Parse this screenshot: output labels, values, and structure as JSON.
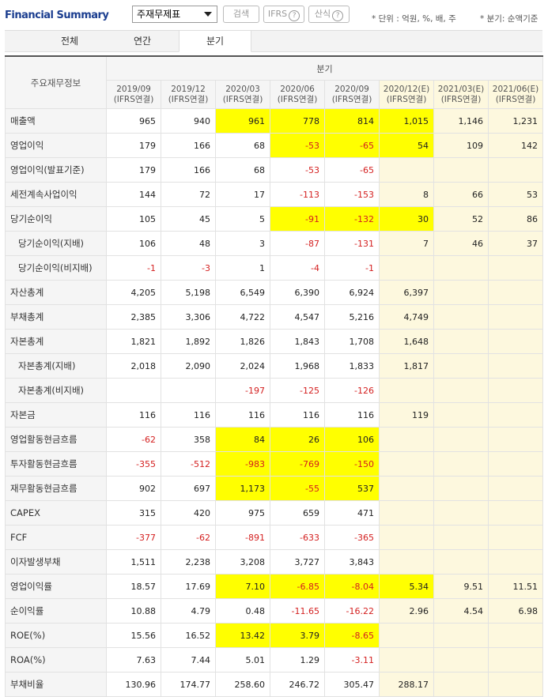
{
  "header": {
    "title": "Financial Summary",
    "select": "주재무제표",
    "buttons": [
      "검색",
      "IFRS",
      "산식"
    ],
    "notes": [
      "* 단위 : 억원, %, 배, 주",
      "* 분기: 순액기준"
    ]
  },
  "tabs": {
    "items": [
      "전체",
      "연간",
      "분기"
    ],
    "active": 2
  },
  "table": {
    "corner": "주요재무정보",
    "group": "분기",
    "highlight_color": "#ffff00",
    "estimate_color": "#fdf8de",
    "columns": [
      {
        "period": "2019/09",
        "basis": "(IFRS연결)",
        "estimated": false
      },
      {
        "period": "2019/12",
        "basis": "(IFRS연결)",
        "estimated": false
      },
      {
        "period": "2020/03",
        "basis": "(IFRS연결)",
        "estimated": false
      },
      {
        "period": "2020/06",
        "basis": "(IFRS연결)",
        "estimated": false
      },
      {
        "period": "2020/09",
        "basis": "(IFRS연결)",
        "estimated": false
      },
      {
        "period": "2020/12(E)",
        "basis": "(IFRS연결)",
        "estimated": true
      },
      {
        "period": "2021/03(E)",
        "basis": "(IFRS연결)",
        "estimated": true
      },
      {
        "period": "2021/06(E)",
        "basis": "(IFRS연결)",
        "estimated": true
      }
    ],
    "rows": [
      {
        "label": "매출액",
        "indent": false,
        "highlighted": [
          2,
          3,
          4,
          5
        ],
        "values": [
          "965",
          "940",
          "961",
          "778",
          "814",
          "1,015",
          "1,146",
          "1,231"
        ]
      },
      {
        "label": "영업이익",
        "indent": false,
        "highlighted": [
          3,
          4,
          5
        ],
        "values": [
          "179",
          "166",
          "68",
          "-53",
          "-65",
          "54",
          "109",
          "142"
        ]
      },
      {
        "label": "영업이익(발표기준)",
        "indent": false,
        "highlighted": [],
        "values": [
          "179",
          "166",
          "68",
          "-53",
          "-65",
          null,
          null,
          null
        ]
      },
      {
        "label": "세전계속사업이익",
        "indent": false,
        "highlighted": [],
        "values": [
          "144",
          "72",
          "17",
          "-113",
          "-153",
          "8",
          "66",
          "53"
        ]
      },
      {
        "label": "당기순이익",
        "indent": false,
        "highlighted": [
          3,
          4,
          5
        ],
        "values": [
          "105",
          "45",
          "5",
          "-91",
          "-132",
          "30",
          "52",
          "86"
        ]
      },
      {
        "label": "당기순이익(지배)",
        "indent": true,
        "highlighted": [],
        "values": [
          "106",
          "48",
          "3",
          "-87",
          "-131",
          "7",
          "46",
          "37"
        ]
      },
      {
        "label": "당기순이익(비지배)",
        "indent": true,
        "highlighted": [],
        "values": [
          "-1",
          "-3",
          "1",
          "-4",
          "-1",
          null,
          null,
          null
        ]
      },
      {
        "label": "자산총계",
        "indent": false,
        "highlighted": [],
        "values": [
          "4,205",
          "5,198",
          "6,549",
          "6,390",
          "6,924",
          "6,397",
          null,
          null
        ]
      },
      {
        "label": "부채총계",
        "indent": false,
        "highlighted": [],
        "values": [
          "2,385",
          "3,306",
          "4,722",
          "4,547",
          "5,216",
          "4,749",
          null,
          null
        ]
      },
      {
        "label": "자본총계",
        "indent": false,
        "highlighted": [],
        "values": [
          "1,821",
          "1,892",
          "1,826",
          "1,843",
          "1,708",
          "1,648",
          null,
          null
        ]
      },
      {
        "label": "자본총계(지배)",
        "indent": true,
        "highlighted": [],
        "values": [
          "2,018",
          "2,090",
          "2,024",
          "1,968",
          "1,833",
          "1,817",
          null,
          null
        ]
      },
      {
        "label": "자본총계(비지배)",
        "indent": true,
        "highlighted": [],
        "values": [
          null,
          null,
          "-197",
          "-125",
          "-126",
          null,
          null,
          null
        ]
      },
      {
        "label": "자본금",
        "indent": false,
        "highlighted": [],
        "values": [
          "116",
          "116",
          "116",
          "116",
          "116",
          "119",
          null,
          null
        ]
      },
      {
        "label": "영업활동현금흐름",
        "indent": false,
        "highlighted": [
          2,
          3,
          4
        ],
        "values": [
          "-62",
          "358",
          "84",
          "26",
          "106",
          null,
          null,
          null
        ]
      },
      {
        "label": "투자활동현금흐름",
        "indent": false,
        "highlighted": [
          2,
          3,
          4
        ],
        "values": [
          "-355",
          "-512",
          "-983",
          "-769",
          "-150",
          null,
          null,
          null
        ]
      },
      {
        "label": "재무활동현금흐름",
        "indent": false,
        "highlighted": [
          2,
          3,
          4
        ],
        "values": [
          "902",
          "697",
          "1,173",
          "-55",
          "537",
          null,
          null,
          null
        ]
      },
      {
        "label": "CAPEX",
        "indent": false,
        "highlighted": [],
        "values": [
          "315",
          "420",
          "975",
          "659",
          "471",
          null,
          null,
          null
        ]
      },
      {
        "label": "FCF",
        "indent": false,
        "highlighted": [],
        "values": [
          "-377",
          "-62",
          "-891",
          "-633",
          "-365",
          null,
          null,
          null
        ]
      },
      {
        "label": "이자발생부채",
        "indent": false,
        "highlighted": [],
        "values": [
          "1,511",
          "2,238",
          "3,208",
          "3,727",
          "3,843",
          null,
          null,
          null
        ]
      },
      {
        "label": "영업이익률",
        "indent": false,
        "highlighted": [
          2,
          3,
          4,
          5
        ],
        "values": [
          "18.57",
          "17.69",
          "7.10",
          "-6.85",
          "-8.04",
          "5.34",
          "9.51",
          "11.51"
        ]
      },
      {
        "label": "순이익률",
        "indent": false,
        "highlighted": [],
        "values": [
          "10.88",
          "4.79",
          "0.48",
          "-11.65",
          "-16.22",
          "2.96",
          "4.54",
          "6.98"
        ]
      },
      {
        "label": "ROE(%)",
        "indent": false,
        "highlighted": [
          2,
          3,
          4
        ],
        "values": [
          "15.56",
          "16.52",
          "13.42",
          "3.79",
          "-8.65",
          null,
          null,
          null
        ]
      },
      {
        "label": "ROA(%)",
        "indent": false,
        "highlighted": [],
        "values": [
          "7.63",
          "7.44",
          "5.01",
          "1.29",
          "-3.11",
          null,
          null,
          null
        ]
      },
      {
        "label": "부채비율",
        "indent": false,
        "highlighted": [],
        "values": [
          "130.96",
          "174.77",
          "258.60",
          "246.72",
          "305.47",
          "288.17",
          null,
          null
        ]
      }
    ]
  }
}
